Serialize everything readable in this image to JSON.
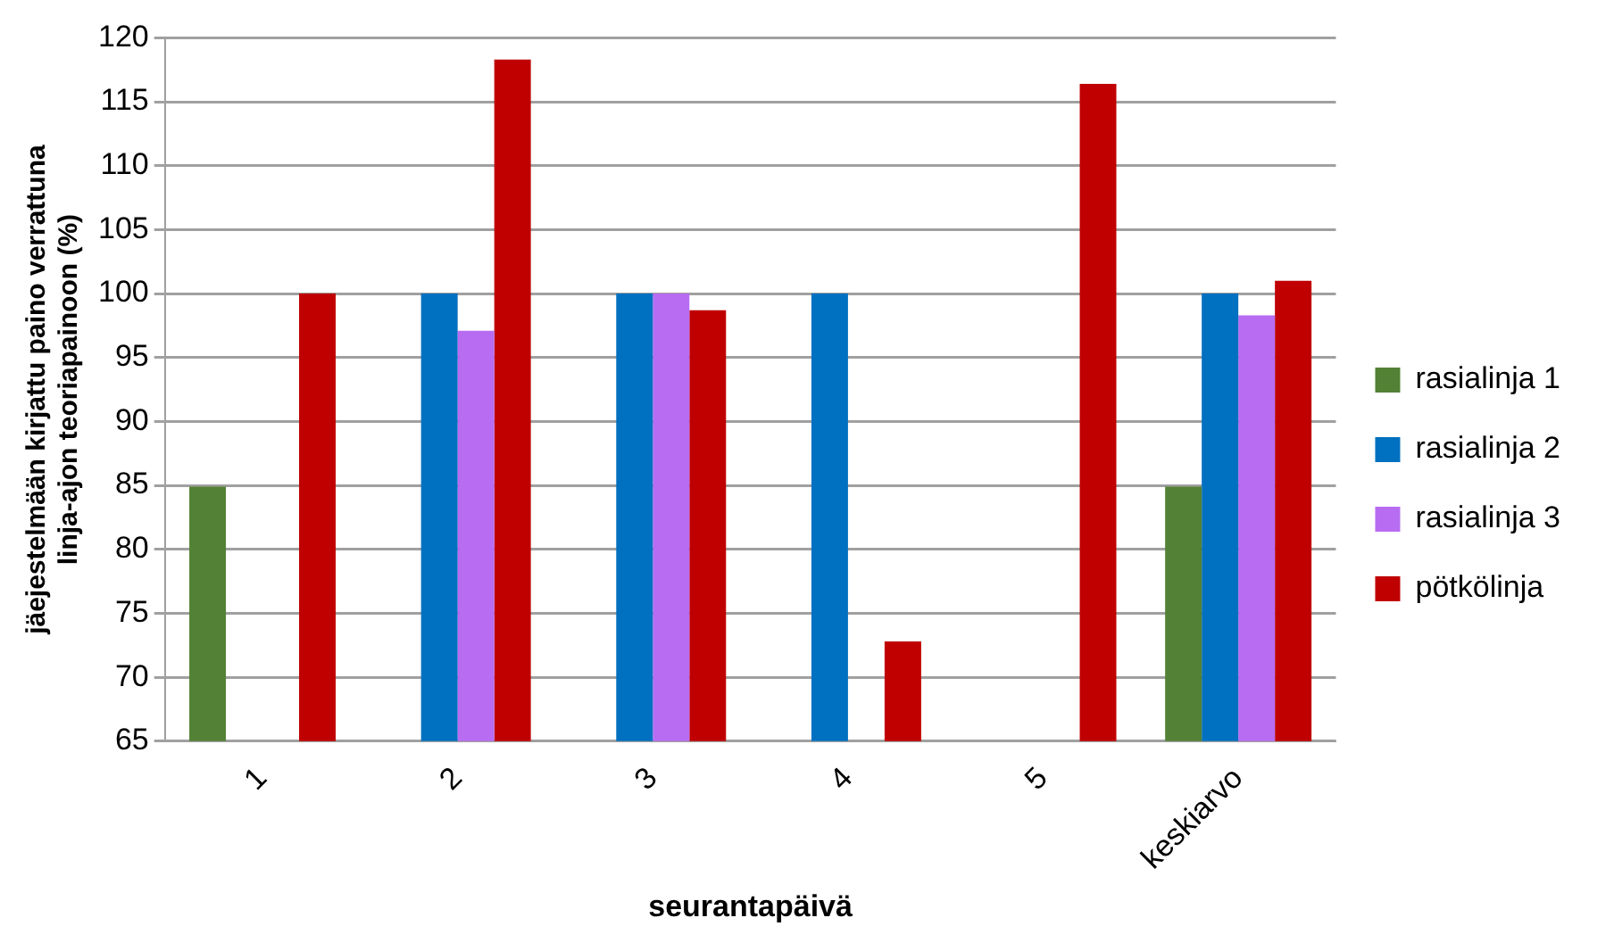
{
  "chart_data": {
    "type": "bar",
    "xlabel": "seurantapäivä",
    "ylabel": "jäejestelmään kirjattu paino verrattuna linja-ajon teoriapainoon (%)",
    "categories": [
      "1",
      "2",
      "3",
      "4",
      "5",
      "keskiarvo"
    ],
    "series": [
      {
        "name": "rasialinja 1",
        "color": "#538135",
        "values": [
          84.9,
          null,
          null,
          null,
          null,
          84.9
        ]
      },
      {
        "name": "rasialinja 2",
        "color": "#0070c0",
        "values": [
          null,
          100,
          100,
          100,
          null,
          100
        ]
      },
      {
        "name": "rasialinja 3",
        "color": "#b86cf2",
        "values": [
          null,
          97.1,
          100,
          null,
          null,
          98.3
        ]
      },
      {
        "name": "pötkölinja",
        "color": "#c00000",
        "values": [
          100,
          118.3,
          98.7,
          72.8,
          116.4,
          101
        ]
      }
    ],
    "ylim": [
      65,
      120
    ],
    "yticks": [
      65,
      70,
      75,
      80,
      85,
      90,
      95,
      100,
      105,
      110,
      115,
      120
    ],
    "grid": "y",
    "legend": "right"
  }
}
